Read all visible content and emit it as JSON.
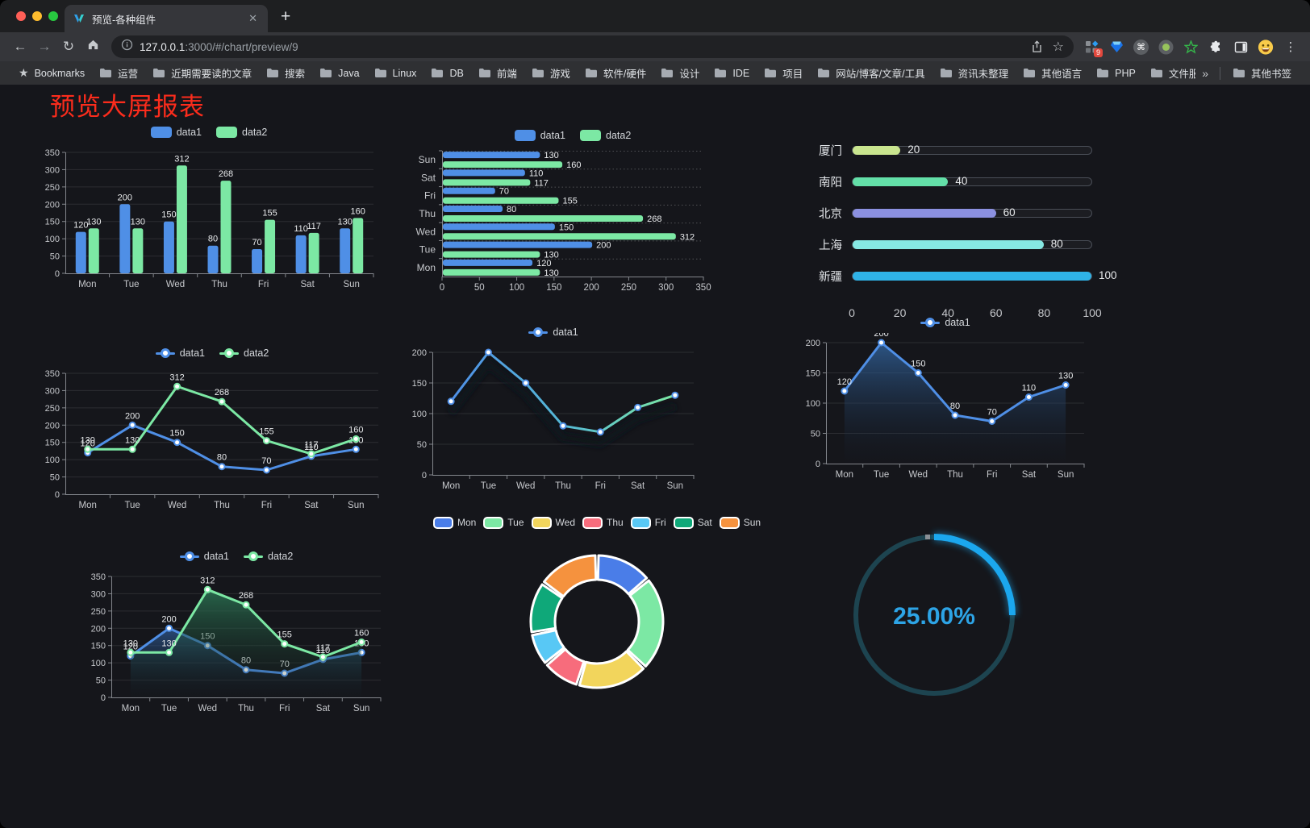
{
  "browser": {
    "tab_title": "预览-各种组件",
    "url_host": "127.0.0.1",
    "url_rest": ":3000/#/chart/preview/9",
    "extension_badge": "9",
    "bookmarks_label": "Bookmarks",
    "bookmarks": [
      "运营",
      "近期需要读的文章",
      "搜索",
      "Java",
      "Linux",
      "DB",
      "前端",
      "游戏",
      "软件/硬件",
      "设计",
      "IDE",
      "项目",
      "网站/博客/文章/工具",
      "资讯未整理",
      "其他语言",
      "PHP",
      "文件服务器"
    ],
    "other_bookmarks": "其他书签"
  },
  "icons": {
    "back": "←",
    "forward": "→",
    "reload": "↻",
    "star": "☆",
    "bookmark_star": "★",
    "menu": "⋮",
    "command": "⌘",
    "overflow": "»",
    "close": "✕",
    "new_tab": "+"
  },
  "page": {
    "title": "预览大屏报表",
    "title_color": "#fb2c1c",
    "background": "#15161b"
  },
  "palette": {
    "data1": "#4f8fe6",
    "data2": "#7ce8a4",
    "axis_label": "#c6c8cc",
    "value_label": "#e8eaec",
    "axis_line": "#83868c",
    "grid": "rgba(255,255,255,0.10)"
  },
  "chart_data": [
    {
      "id": "c1",
      "name": "grouped-bar-chart",
      "type": "bar",
      "legend": [
        "data1",
        "data2"
      ],
      "categories": [
        "Mon",
        "Tue",
        "Wed",
        "Thu",
        "Fri",
        "Sat",
        "Sun"
      ],
      "series": [
        {
          "name": "data1",
          "color": "#4f8fe6",
          "values": [
            120,
            200,
            150,
            80,
            70,
            110,
            130
          ]
        },
        {
          "name": "data2",
          "color": "#7ce8a4",
          "values": [
            130,
            130,
            312,
            268,
            155,
            117,
            160
          ]
        }
      ],
      "ylim": [
        0,
        350
      ],
      "ystep": 50,
      "grid": true,
      "legend_position": "top"
    },
    {
      "id": "c2",
      "name": "horizontal-bar-chart",
      "type": "bar-horizontal",
      "legend": [
        "data1",
        "data2"
      ],
      "categories_top_to_bottom": [
        "Sun",
        "Sat",
        "Fri",
        "Thu",
        "Wed",
        "Tue",
        "Mon"
      ],
      "series": [
        {
          "name": "data1",
          "color": "#4f8fe6",
          "values": [
            130,
            110,
            70,
            80,
            150,
            200,
            120
          ]
        },
        {
          "name": "data2",
          "color": "#7ce8a4",
          "values": [
            160,
            117,
            155,
            268,
            312,
            130,
            130
          ]
        }
      ],
      "xlim": [
        0,
        350
      ],
      "xstep": 50,
      "legend_position": "top"
    },
    {
      "id": "c3",
      "name": "capsule-bar-chart",
      "type": "capsule",
      "items": [
        {
          "label": "厦门",
          "value": 20,
          "color": "#c9e58f"
        },
        {
          "label": "南阳",
          "value": 40,
          "color": "#63dfa8"
        },
        {
          "label": "北京",
          "value": 60,
          "color": "#8b90e0"
        },
        {
          "label": "上海",
          "value": 80,
          "color": "#86e8e3"
        },
        {
          "label": "新疆",
          "value": 100,
          "color": "#2fb3e8"
        }
      ],
      "xticks": [
        0,
        20,
        40,
        60,
        80,
        100
      ],
      "xlim": [
        0,
        100
      ]
    },
    {
      "id": "c4",
      "name": "multi-line-chart",
      "type": "line",
      "legend": [
        "data1",
        "data2"
      ],
      "labels": true,
      "categories": [
        "Mon",
        "Tue",
        "Wed",
        "Thu",
        "Fri",
        "Sat",
        "Sun"
      ],
      "series": [
        {
          "name": "data1",
          "color": "#4f8fe6",
          "values": [
            120,
            200,
            150,
            80,
            70,
            110,
            130
          ]
        },
        {
          "name": "data2",
          "color": "#7ce8a4",
          "values": [
            130,
            130,
            312,
            268,
            155,
            117,
            160
          ]
        }
      ],
      "ylim": [
        0,
        350
      ],
      "ystep": 50,
      "legend_position": "top"
    },
    {
      "id": "c5",
      "name": "gradient-line-chart",
      "type": "line",
      "legend": [
        "data1"
      ],
      "labels": false,
      "shadow": true,
      "categories": [
        "Mon",
        "Tue",
        "Wed",
        "Thu",
        "Fri",
        "Sat",
        "Sun"
      ],
      "series": [
        {
          "name": "data1",
          "color": "#4f8fe6",
          "gradient": [
            "#4f8fe6",
            "#55b9d6",
            "#7ce8a4"
          ],
          "values": [
            120,
            200,
            150,
            80,
            70,
            110,
            130
          ]
        }
      ],
      "ylim": [
        0,
        200
      ],
      "ystep": 50,
      "legend_position": "top"
    },
    {
      "id": "c6",
      "name": "area-line-chart",
      "type": "line",
      "legend": [
        "data1"
      ],
      "labels": true,
      "categories": [
        "Mon",
        "Tue",
        "Wed",
        "Thu",
        "Fri",
        "Sat",
        "Sun"
      ],
      "series": [
        {
          "name": "data1",
          "color": "#4f8fe6",
          "area": [
            "rgba(52,106,168,0.75)",
            "rgba(20,28,42,0.05)"
          ],
          "values": [
            120,
            200,
            150,
            80,
            70,
            110,
            130
          ]
        }
      ],
      "ylim": [
        0,
        200
      ],
      "ystep": 50,
      "legend_position": "top"
    },
    {
      "id": "c7",
      "name": "stacked-area-line-chart",
      "type": "line",
      "legend": [
        "data1",
        "data2"
      ],
      "labels": true,
      "categories": [
        "Mon",
        "Tue",
        "Wed",
        "Thu",
        "Fri",
        "Sat",
        "Sun"
      ],
      "series": [
        {
          "name": "data1",
          "color": "#4f8fe6",
          "area": [
            "rgba(48,96,158,0.70)",
            "rgba(18,26,40,0.05)"
          ],
          "values": [
            120,
            200,
            150,
            80,
            70,
            110,
            130
          ]
        },
        {
          "name": "data2",
          "color": "#7ce8a4",
          "area": [
            "rgba(44,120,86,0.80)",
            "rgba(18,30,26,0.05)"
          ],
          "values": [
            130,
            130,
            312,
            268,
            155,
            117,
            160
          ]
        }
      ],
      "ylim": [
        0,
        350
      ],
      "ystep": 50,
      "legend_position": "top"
    },
    {
      "id": "c8",
      "name": "donut-pie-chart",
      "type": "pie",
      "legend_position": "top",
      "items": [
        {
          "label": "Mon",
          "value": 120,
          "color": "#4a7de8"
        },
        {
          "label": "Tue",
          "value": 200,
          "color": "#7ce8a4"
        },
        {
          "label": "Wed",
          "value": 150,
          "color": "#f2d55c"
        },
        {
          "label": "Thu",
          "value": 80,
          "color": "#f76c7c"
        },
        {
          "label": "Fri",
          "value": 70,
          "color": "#58c8f5"
        },
        {
          "label": "Sat",
          "value": 110,
          "color": "#0fa879"
        },
        {
          "label": "Sun",
          "value": 130,
          "color": "#f5923e"
        }
      ],
      "inner_radius": 52,
      "outer_radius": 82
    },
    {
      "id": "c9",
      "name": "progress-gauge",
      "type": "gauge",
      "value": 25,
      "display": "25.00%",
      "color": "#1ba7ee",
      "track_color": "#1d4450",
      "text_color": "#2da4e6"
    }
  ]
}
